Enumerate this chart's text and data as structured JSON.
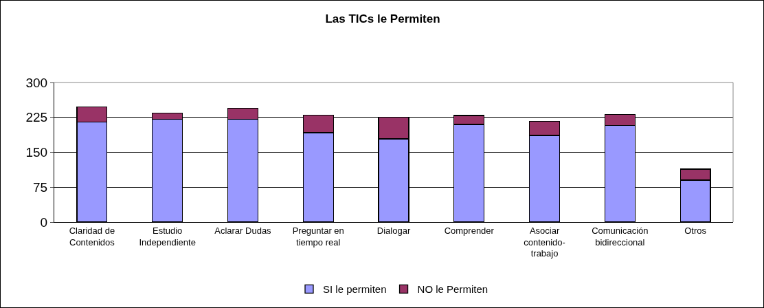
{
  "chart_data": {
    "type": "bar",
    "title": "Las TICs le Permiten",
    "stacked": true,
    "categories": [
      "Claridad de\nContenidos",
      "Estudio\nIndependiente",
      "Aclarar Dudas",
      "Preguntar en\ntiempo real",
      "Dialogar",
      "Comprender",
      "Asociar\ncontenido-\ntrabajo",
      "Comunicación\nbidireccional",
      "Otros"
    ],
    "series": [
      {
        "name": "SI le permiten",
        "color": "#9999ff",
        "values": [
          215,
          221,
          221,
          192,
          179,
          210,
          186,
          208,
          90
        ]
      },
      {
        "name": "NO le Permiten",
        "color": "#993366",
        "values": [
          33,
          13,
          24,
          38,
          46,
          19,
          31,
          23,
          24
        ]
      }
    ],
    "ylim": [
      0,
      300
    ],
    "yticks": [
      0,
      75,
      150,
      225,
      300
    ],
    "grid": "y",
    "legend": "bottom"
  }
}
